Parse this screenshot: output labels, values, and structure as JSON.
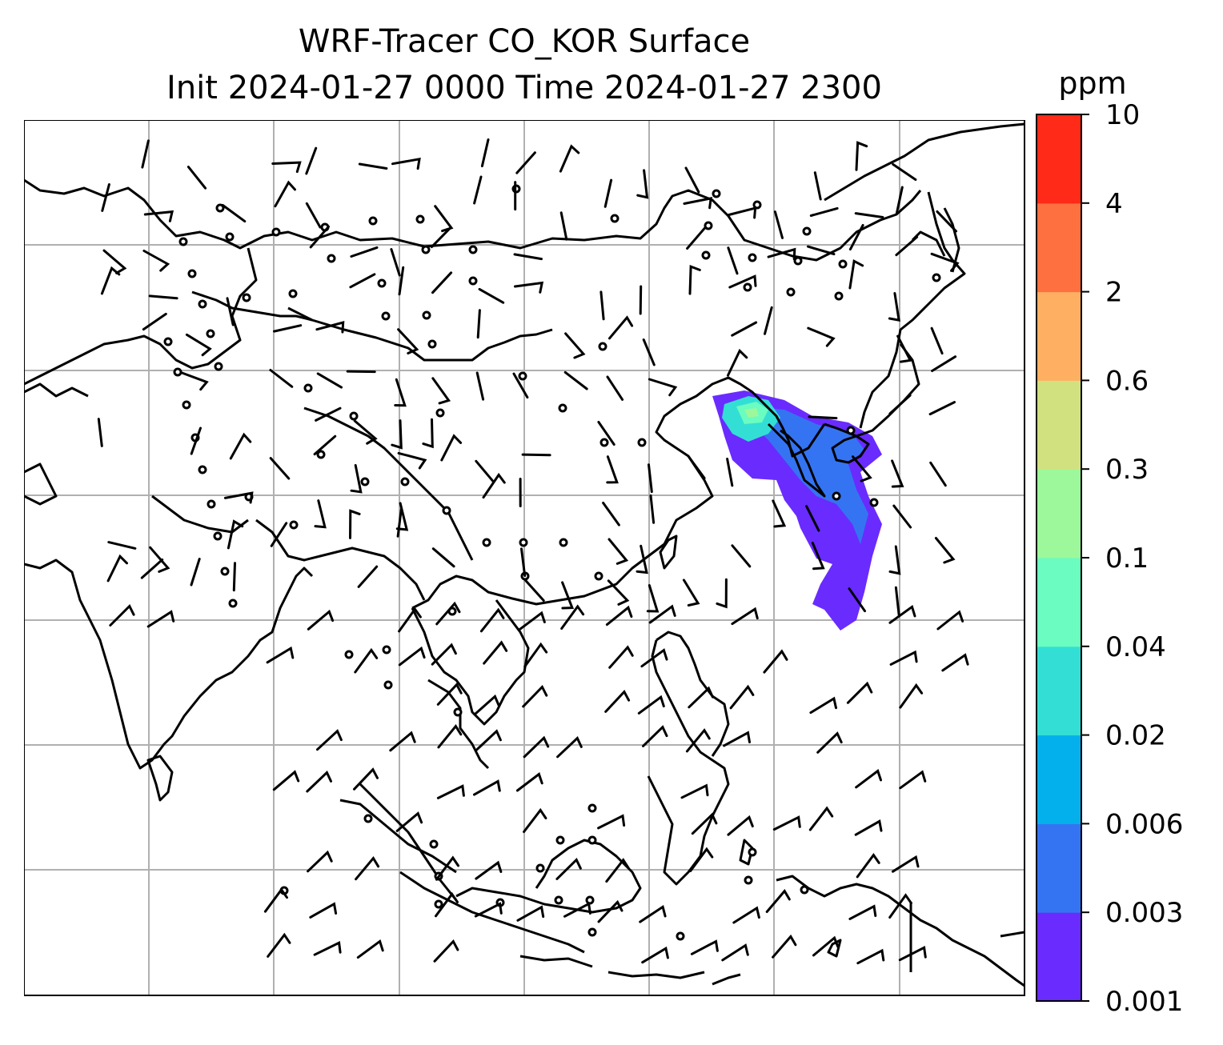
{
  "title": {
    "line1": "WRF-Tracer CO_KOR Surface",
    "line2": "Init 2024-01-27 0000 Time 2024-01-27 2300"
  },
  "colorbar": {
    "unit": "ppm",
    "levels": [
      "0.001",
      "0.003",
      "0.006",
      "0.02",
      "0.04",
      "0.1",
      "0.3",
      "0.6",
      "2",
      "4",
      "10"
    ],
    "colors": [
      "#6a2bff",
      "#3474f2",
      "#04b0ec",
      "#33dfd4",
      "#6afcc0",
      "#9cf89a",
      "#d1e180",
      "#feaf62",
      "#ff7040",
      "#ff2a18"
    ]
  },
  "map": {
    "gridlines": true,
    "coastline_color": "#000000",
    "tracer_plume": {
      "region": "Korea / Yellow Sea / East China Sea",
      "colors_present": [
        "#6a2bff",
        "#3474f2",
        "#33dfd4",
        "#6afcc0"
      ]
    },
    "wind_barbs": "black barbs over land and ocean; calm-wind circles over the Tibetan Plateau, Mongolia and Indonesia"
  }
}
